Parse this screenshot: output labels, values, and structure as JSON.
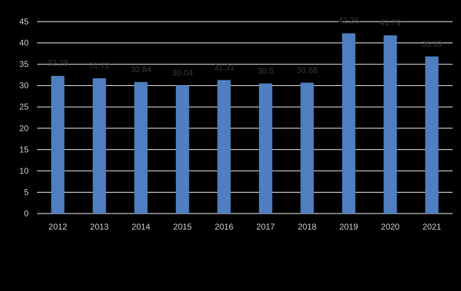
{
  "chart_data": {
    "type": "bar",
    "categories": [
      "2012",
      "2013",
      "2014",
      "2015",
      "2016",
      "2017",
      "2018",
      "2019",
      "2020",
      "2021"
    ],
    "values": [
      32.28,
      31.72,
      30.84,
      30.04,
      31.31,
      30.5,
      30.68,
      42.26,
      41.79,
      36.83
    ],
    "data_labels": [
      "32.28",
      "31.72",
      "30.84",
      "30.04",
      "31.31",
      "30.5",
      "30.68",
      "42.26",
      "41.79",
      "36.83"
    ],
    "title": "",
    "xlabel": "",
    "ylabel": "",
    "ylim": [
      0,
      45
    ],
    "yticks": [
      "0",
      "5",
      "10",
      "15",
      "20",
      "25",
      "30",
      "35",
      "40",
      "45"
    ],
    "grid": true,
    "legend": "none",
    "colors": {
      "background": "#000000",
      "bar": "#4f7fc0",
      "gridline": "#ffffff",
      "tick_text": "#cfcfcf",
      "data_label_text": "#3a3a3a"
    }
  }
}
